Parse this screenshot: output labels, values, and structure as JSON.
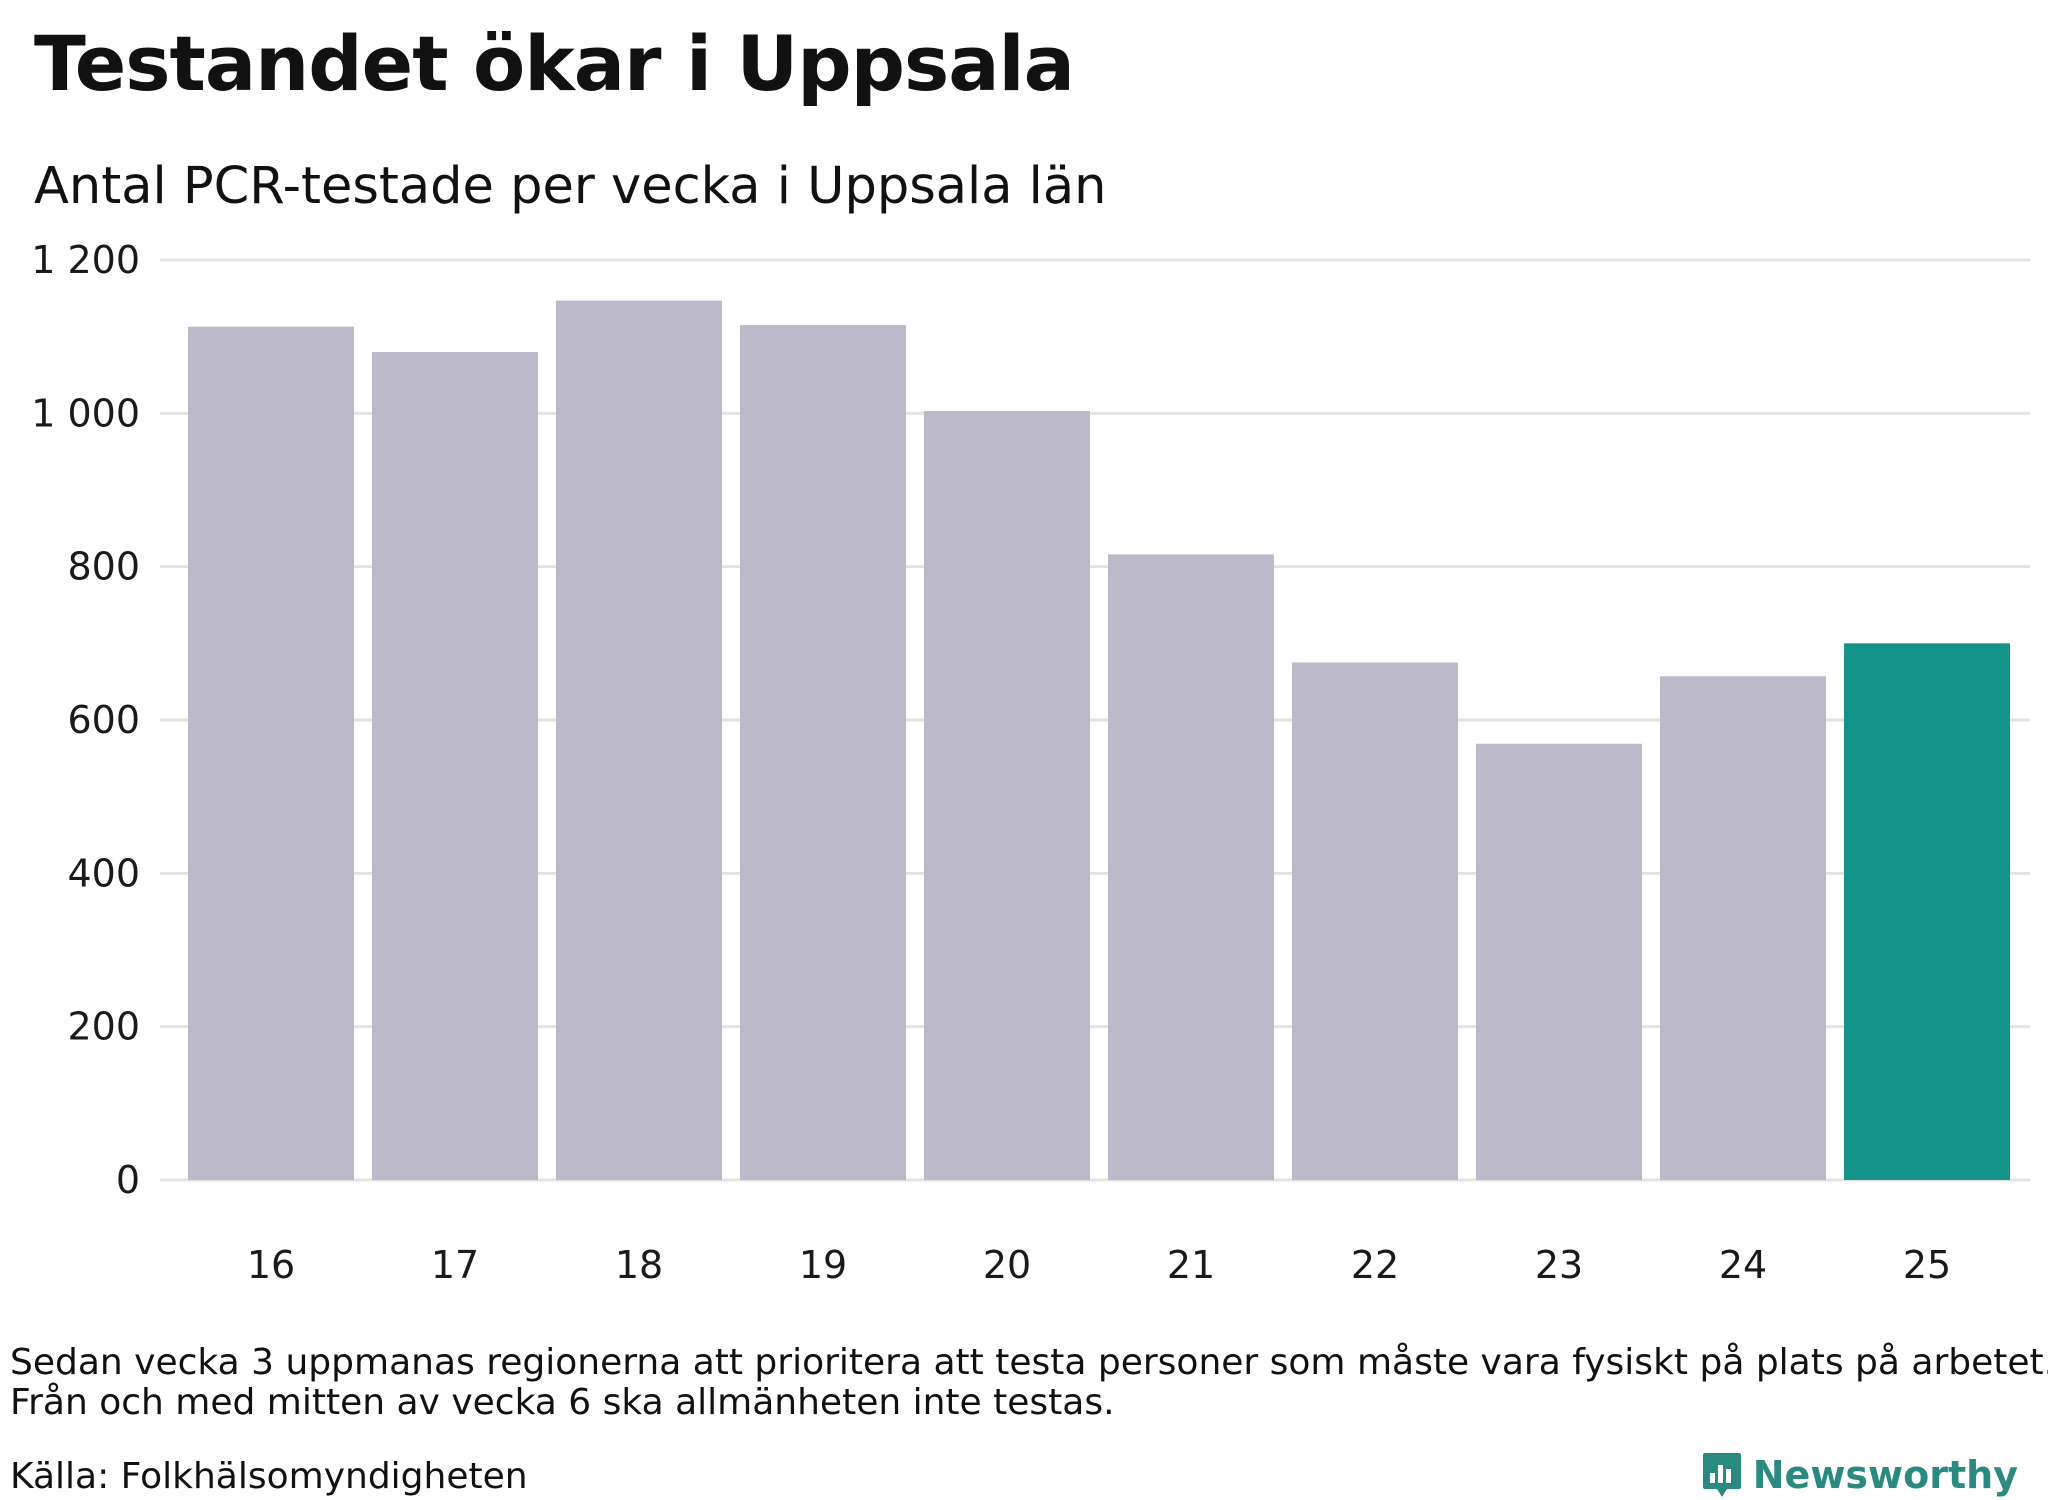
{
  "header": {
    "title": "Testandet ökar i Uppsala",
    "subtitle": "Antal PCR-testade per vecka i Uppsala län"
  },
  "chart_data": {
    "type": "bar",
    "title": "Testandet ökar i Uppsala",
    "subtitle": "Antal PCR-testade per vecka i Uppsala län",
    "xlabel": "",
    "ylabel": "",
    "categories": [
      "16",
      "17",
      "18",
      "19",
      "20",
      "21",
      "22",
      "23",
      "24",
      "25"
    ],
    "values": [
      1113,
      1080,
      1147,
      1115,
      1003,
      816,
      675,
      569,
      657,
      700
    ],
    "highlight_index": 9,
    "ylim": [
      0,
      1200
    ],
    "yticks": [
      0,
      200,
      400,
      600,
      800,
      1000,
      1200
    ],
    "ytick_labels": [
      "0",
      "200",
      "400",
      "600",
      "800",
      "1 000",
      "1 200"
    ],
    "grid": true,
    "colors": {
      "bar": "#bcbac8",
      "highlight": "#149488",
      "grid": "#e3e3e3"
    }
  },
  "footer": {
    "note_line1": "Sedan vecka 3 uppmanas regionerna att prioritera att testa personer som måste vara fysiskt på plats på arbetet.",
    "note_line2": "Från och med mitten av vecka 6 ska allmänheten inte testas.",
    "source": "Källa: Folkhälsomyndigheten",
    "brand": "Newsworthy",
    "brand_icon": "newsworthy-logo-icon",
    "brand_color": "#2a8a7f"
  }
}
